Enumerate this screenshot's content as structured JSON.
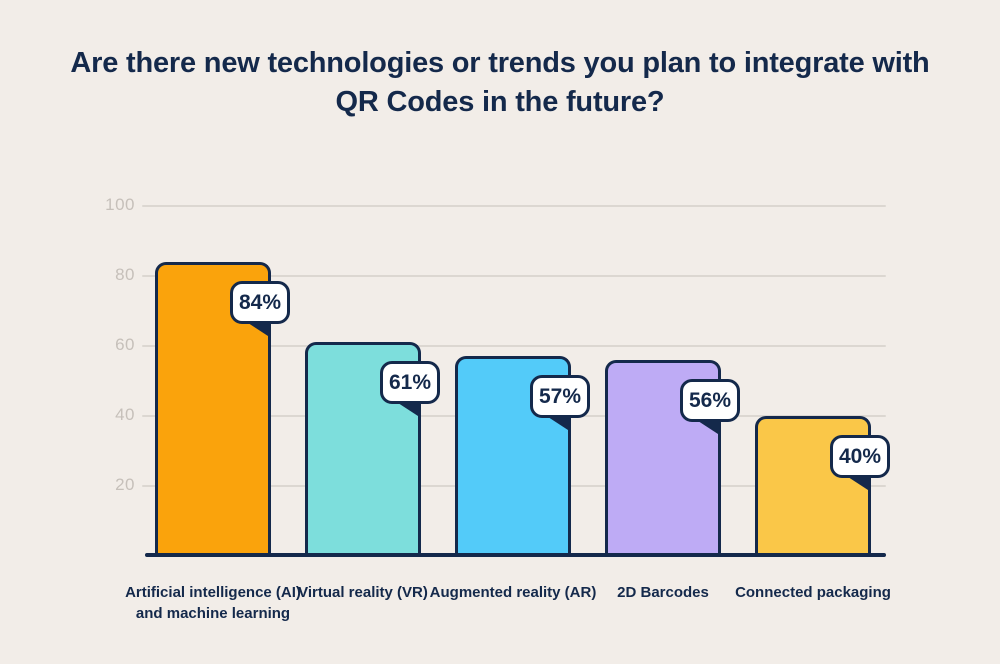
{
  "page": {
    "background": "#F2EDE8",
    "accent_navy": "#14294B"
  },
  "chart_data": {
    "type": "bar",
    "title": "Are there new technologies or trends you plan to integrate with QR Codes in the future?",
    "categories": [
      "Artificial intelligence (AI)\nand machine learning",
      "Virtual reality (VR)",
      "Augmented reality (AR)",
      "2D Barcodes",
      "Connected packaging"
    ],
    "values": [
      84,
      61,
      57,
      56,
      40
    ],
    "value_labels": [
      "84%",
      "61%",
      "57%",
      "56%",
      "40%"
    ],
    "bar_colors": [
      "#FAA30C",
      "#7DDEDC",
      "#53CBF9",
      "#BEABF5",
      "#FAC748"
    ],
    "xlabel": "",
    "ylabel": "",
    "y_ticks": [
      20,
      40,
      60,
      80,
      100
    ],
    "ylim": [
      0,
      100
    ],
    "grid": true,
    "legend": false,
    "gridline_color": "#DCD7D1",
    "tick_label_color": "#C6C0BA",
    "badge_background": "#FFFFFF",
    "badge_text_color": "#14294B"
  }
}
